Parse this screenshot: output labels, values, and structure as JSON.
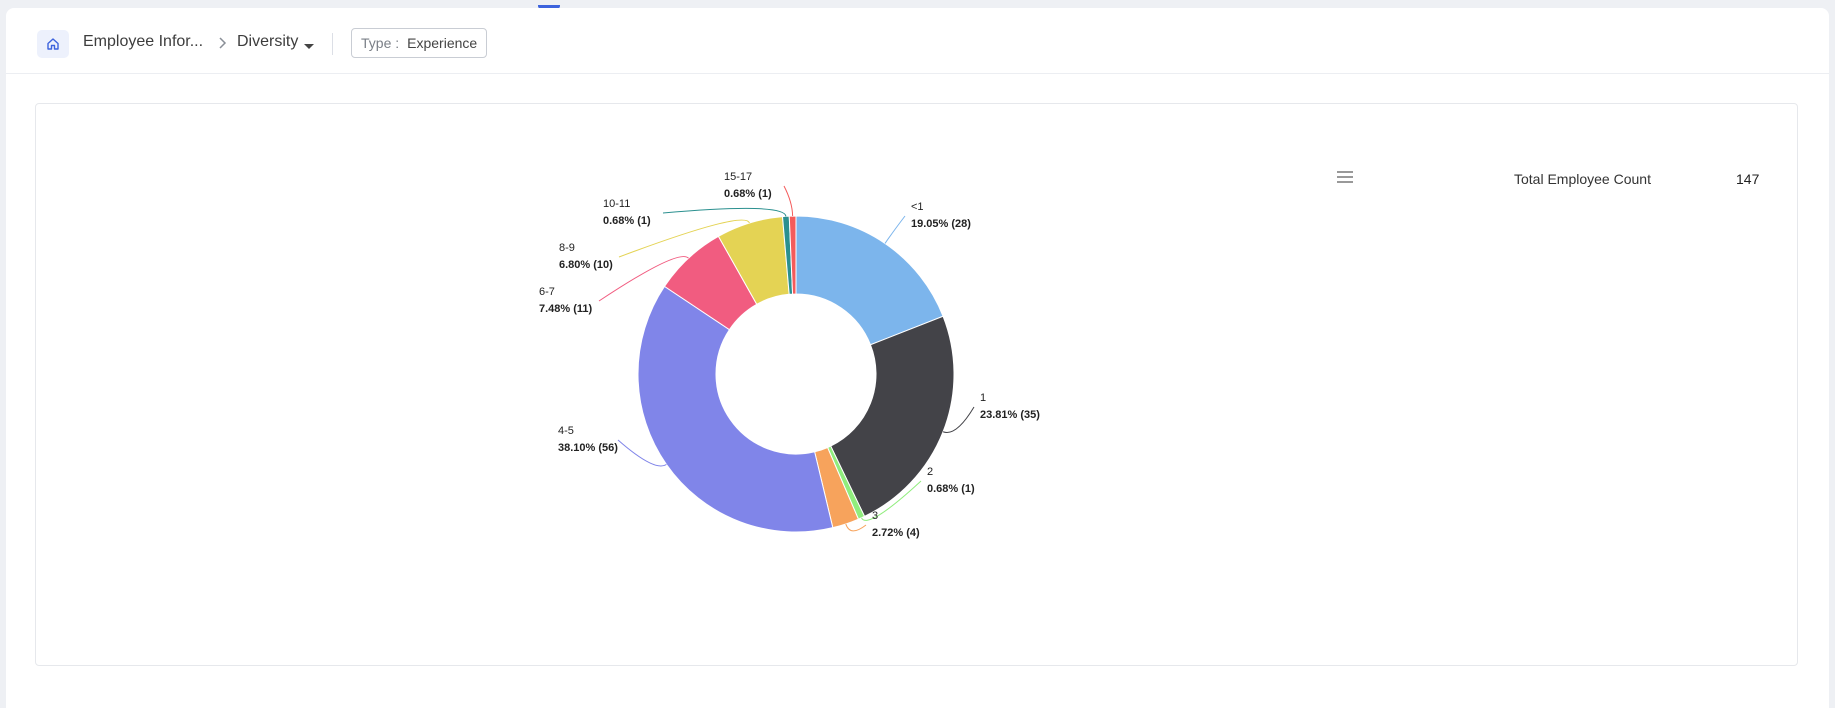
{
  "header": {
    "breadcrumb_root": "Employee Infor...",
    "breadcrumb_current": "Diversity",
    "filter_label": "Type :",
    "filter_value": "Experience"
  },
  "stat": {
    "label": "Total Employee Count",
    "value": "147"
  },
  "icons": {
    "home": "home-icon",
    "separator": "chevron-right-icon",
    "dropdown": "caret-down-icon",
    "menu": "hamburger-menu-icon"
  },
  "colors": {
    "accent": "#3d63dd"
  },
  "chart_data": {
    "type": "pie",
    "donut": true,
    "total": 147,
    "slices": [
      {
        "name": "<1",
        "value": 28,
        "percent": "19.05%",
        "label": "19.05% (28)",
        "color": "#7cb5ec"
      },
      {
        "name": "1",
        "value": 35,
        "percent": "23.81%",
        "label": "23.81% (35)",
        "color": "#434348"
      },
      {
        "name": "2",
        "value": 1,
        "percent": "0.68%",
        "label": "0.68% (1)",
        "color": "#90ed7d"
      },
      {
        "name": "3",
        "value": 4,
        "percent": "2.72%",
        "label": "2.72% (4)",
        "color": "#f7a35c"
      },
      {
        "name": "4-5",
        "value": 56,
        "percent": "38.10%",
        "label": "38.10% (56)",
        "color": "#8085e9"
      },
      {
        "name": "6-7",
        "value": 11,
        "percent": "7.48%",
        "label": "7.48% (11)",
        "color": "#f15c80"
      },
      {
        "name": "8-9",
        "value": 10,
        "percent": "6.80%",
        "label": "6.80% (10)",
        "color": "#e4d354"
      },
      {
        "name": "10-11",
        "value": 1,
        "percent": "0.68%",
        "label": "0.68% (1)",
        "color": "#2b908f"
      },
      {
        "name": "15-17",
        "value": 1,
        "percent": "0.68%",
        "label": "0.68% (1)",
        "color": "#f45b5b"
      }
    ]
  }
}
